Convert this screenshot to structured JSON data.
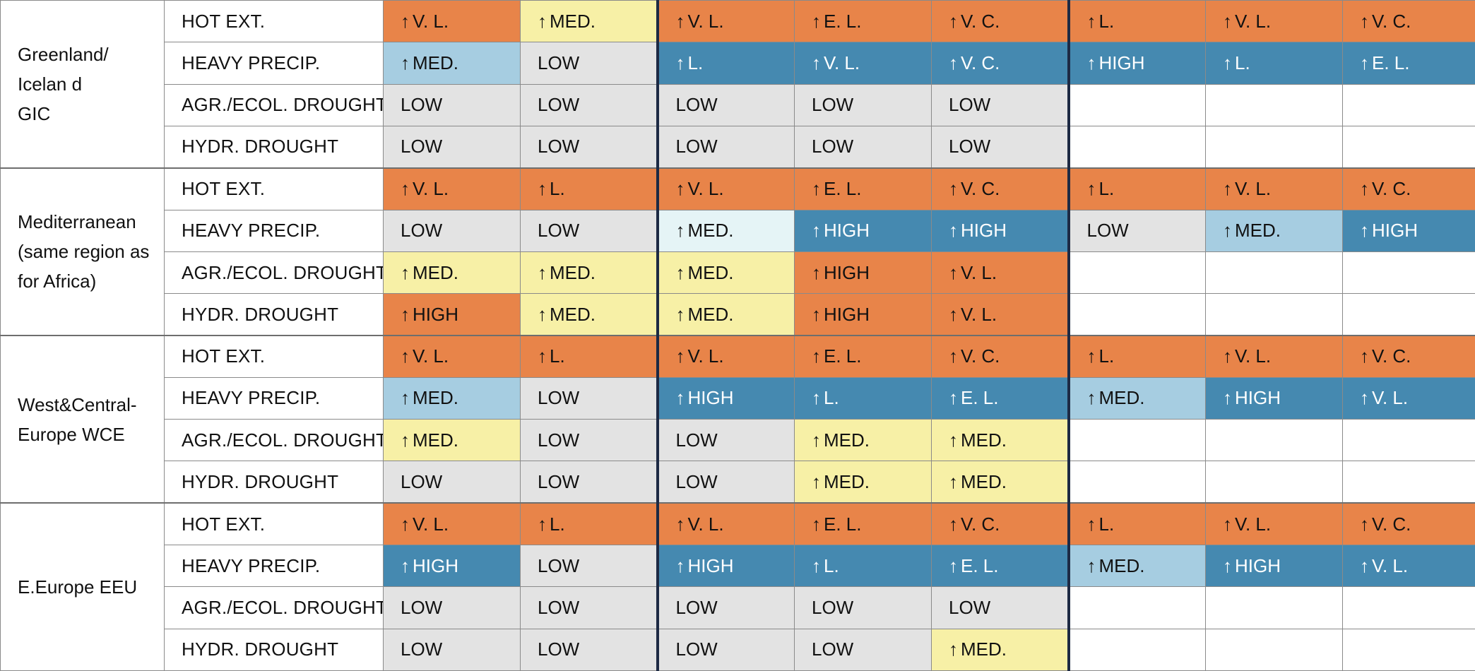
{
  "palette": {
    "hot": "#e88449",
    "yellow": "#f7f0a6",
    "lightblue": "#a6cde1",
    "blue": "#4589b0",
    "palecyan": "#e5f4f6",
    "gray": "#e3e3e3",
    "white": "#ffffff"
  },
  "regions": [
    {
      "label_lines": [
        "Greenland/",
        "Icelan d",
        "GIC"
      ],
      "rows": [
        {
          "hazard": "HOT EXT.",
          "cells": [
            {
              "arrow": "↑",
              "text": "V. L.",
              "color": "hot"
            },
            {
              "arrow": "↑",
              "text": "MED.",
              "color": "yellow"
            },
            {
              "arrow": "↑",
              "text": "V. L.",
              "color": "hot"
            },
            {
              "arrow": "↑",
              "text": "E. L.",
              "color": "hot"
            },
            {
              "arrow": "↑",
              "text": "V. C.",
              "color": "hot"
            },
            {
              "arrow": "↑",
              "text": "L.",
              "color": "hot"
            },
            {
              "arrow": "↑",
              "text": "V. L.",
              "color": "hot"
            },
            {
              "arrow": "↑",
              "text": "V. C.",
              "color": "hot"
            }
          ]
        },
        {
          "hazard": "HEAVY PRECIP.",
          "cells": [
            {
              "arrow": "↑",
              "text": "MED.",
              "color": "lightblue"
            },
            {
              "arrow": "",
              "text": "LOW",
              "color": "gray"
            },
            {
              "arrow": "↑",
              "text": "L.",
              "color": "blue"
            },
            {
              "arrow": "↑",
              "text": "V. L.",
              "color": "blue"
            },
            {
              "arrow": "↑",
              "text": "V. C.",
              "color": "blue"
            },
            {
              "arrow": "↑",
              "text": "HIGH",
              "color": "blue"
            },
            {
              "arrow": "↑",
              "text": "L.",
              "color": "blue"
            },
            {
              "arrow": "↑",
              "text": "E. L.",
              "color": "blue"
            }
          ]
        },
        {
          "hazard": "AGR./ECOL. DROUGHT",
          "cells": [
            {
              "arrow": "",
              "text": "LOW",
              "color": "gray"
            },
            {
              "arrow": "",
              "text": "LOW",
              "color": "gray"
            },
            {
              "arrow": "",
              "text": "LOW",
              "color": "gray"
            },
            {
              "arrow": "",
              "text": "LOW",
              "color": "gray"
            },
            {
              "arrow": "",
              "text": "LOW",
              "color": "gray"
            },
            {
              "arrow": "",
              "text": "",
              "color": "white"
            },
            {
              "arrow": "",
              "text": "",
              "color": "white"
            },
            {
              "arrow": "",
              "text": "",
              "color": "white"
            }
          ]
        },
        {
          "hazard": "HYDR. DROUGHT",
          "cells": [
            {
              "arrow": "",
              "text": "LOW",
              "color": "gray"
            },
            {
              "arrow": "",
              "text": "LOW",
              "color": "gray"
            },
            {
              "arrow": "",
              "text": "LOW",
              "color": "gray"
            },
            {
              "arrow": "",
              "text": "LOW",
              "color": "gray"
            },
            {
              "arrow": "",
              "text": "LOW",
              "color": "gray"
            },
            {
              "arrow": "",
              "text": "",
              "color": "white"
            },
            {
              "arrow": "",
              "text": "",
              "color": "white"
            },
            {
              "arrow": "",
              "text": "",
              "color": "white"
            }
          ]
        }
      ]
    },
    {
      "label_lines": [
        "Mediterranean",
        "(same region as",
        "for Africa)"
      ],
      "rows": [
        {
          "hazard": "HOT EXT.",
          "cells": [
            {
              "arrow": "↑",
              "text": "V. L.",
              "color": "hot"
            },
            {
              "arrow": "↑",
              "text": "L.",
              "color": "hot"
            },
            {
              "arrow": "↑",
              "text": "V. L.",
              "color": "hot"
            },
            {
              "arrow": "↑",
              "text": "E. L.",
              "color": "hot"
            },
            {
              "arrow": "↑",
              "text": "V. C.",
              "color": "hot"
            },
            {
              "arrow": "↑",
              "text": "L.",
              "color": "hot"
            },
            {
              "arrow": "↑",
              "text": "V. L.",
              "color": "hot"
            },
            {
              "arrow": "↑",
              "text": "V. C.",
              "color": "hot"
            }
          ]
        },
        {
          "hazard": "HEAVY PRECIP.",
          "cells": [
            {
              "arrow": "",
              "text": "LOW",
              "color": "gray"
            },
            {
              "arrow": "",
              "text": "LOW",
              "color": "gray"
            },
            {
              "arrow": "↑",
              "text": "MED.",
              "color": "palecyan"
            },
            {
              "arrow": "↑",
              "text": "HIGH",
              "color": "blue"
            },
            {
              "arrow": "↑",
              "text": "HIGH",
              "color": "blue"
            },
            {
              "arrow": "",
              "text": "LOW",
              "color": "gray"
            },
            {
              "arrow": "↑",
              "text": "MED.",
              "color": "lightblue"
            },
            {
              "arrow": "↑",
              "text": "HIGH",
              "color": "blue"
            }
          ]
        },
        {
          "hazard": "AGR./ECOL. DROUGHT",
          "cells": [
            {
              "arrow": "↑",
              "text": "MED.",
              "color": "yellow"
            },
            {
              "arrow": "↑",
              "text": "MED.",
              "color": "yellow"
            },
            {
              "arrow": "↑",
              "text": "MED.",
              "color": "yellow"
            },
            {
              "arrow": "↑",
              "text": "HIGH",
              "color": "hot"
            },
            {
              "arrow": "↑",
              "text": "V. L.",
              "color": "hot"
            },
            {
              "arrow": "",
              "text": "",
              "color": "white"
            },
            {
              "arrow": "",
              "text": "",
              "color": "white"
            },
            {
              "arrow": "",
              "text": "",
              "color": "white"
            }
          ]
        },
        {
          "hazard": "HYDR. DROUGHT",
          "cells": [
            {
              "arrow": "↑",
              "text": "HIGH",
              "color": "hot"
            },
            {
              "arrow": "↑",
              "text": "MED.",
              "color": "yellow"
            },
            {
              "arrow": "↑",
              "text": "MED.",
              "color": "yellow"
            },
            {
              "arrow": "↑",
              "text": "HIGH",
              "color": "hot"
            },
            {
              "arrow": "↑",
              "text": "V. L.",
              "color": "hot"
            },
            {
              "arrow": "",
              "text": "",
              "color": "white"
            },
            {
              "arrow": "",
              "text": "",
              "color": "white"
            },
            {
              "arrow": "",
              "text": "",
              "color": "white"
            }
          ]
        }
      ]
    },
    {
      "label_lines": [
        "West&Central-",
        "Europe WCE"
      ],
      "rows": [
        {
          "hazard": "HOT EXT.",
          "cells": [
            {
              "arrow": "↑",
              "text": "V. L.",
              "color": "hot"
            },
            {
              "arrow": "↑",
              "text": "L.",
              "color": "hot"
            },
            {
              "arrow": "↑",
              "text": "V. L.",
              "color": "hot"
            },
            {
              "arrow": "↑",
              "text": "E. L.",
              "color": "hot"
            },
            {
              "arrow": "↑",
              "text": "V. C.",
              "color": "hot"
            },
            {
              "arrow": "↑",
              "text": "L.",
              "color": "hot"
            },
            {
              "arrow": "↑",
              "text": "V. L.",
              "color": "hot"
            },
            {
              "arrow": "↑",
              "text": "V. C.",
              "color": "hot"
            }
          ]
        },
        {
          "hazard": "HEAVY PRECIP.",
          "cells": [
            {
              "arrow": "↑",
              "text": "MED.",
              "color": "lightblue"
            },
            {
              "arrow": "",
              "text": "LOW",
              "color": "gray"
            },
            {
              "arrow": "↑",
              "text": "HIGH",
              "color": "blue"
            },
            {
              "arrow": "↑",
              "text": "L.",
              "color": "blue"
            },
            {
              "arrow": "↑",
              "text": "E. L.",
              "color": "blue"
            },
            {
              "arrow": "↑",
              "text": "MED.",
              "color": "lightblue"
            },
            {
              "arrow": "↑",
              "text": "HIGH",
              "color": "blue"
            },
            {
              "arrow": "↑",
              "text": "V. L.",
              "color": "blue"
            }
          ]
        },
        {
          "hazard": "AGR./ECOL. DROUGHT",
          "cells": [
            {
              "arrow": "↑",
              "text": "MED.",
              "color": "yellow"
            },
            {
              "arrow": "",
              "text": "LOW",
              "color": "gray"
            },
            {
              "arrow": "",
              "text": "LOW",
              "color": "gray"
            },
            {
              "arrow": "↑",
              "text": "MED.",
              "color": "yellow"
            },
            {
              "arrow": "↑",
              "text": "MED.",
              "color": "yellow"
            },
            {
              "arrow": "",
              "text": "",
              "color": "white"
            },
            {
              "arrow": "",
              "text": "",
              "color": "white"
            },
            {
              "arrow": "",
              "text": "",
              "color": "white"
            }
          ]
        },
        {
          "hazard": "HYDR. DROUGHT",
          "cells": [
            {
              "arrow": "",
              "text": "LOW",
              "color": "gray"
            },
            {
              "arrow": "",
              "text": "LOW",
              "color": "gray"
            },
            {
              "arrow": "",
              "text": "LOW",
              "color": "gray"
            },
            {
              "arrow": "↑",
              "text": "MED.",
              "color": "yellow"
            },
            {
              "arrow": "↑",
              "text": "MED.",
              "color": "yellow"
            },
            {
              "arrow": "",
              "text": "",
              "color": "white"
            },
            {
              "arrow": "",
              "text": "",
              "color": "white"
            },
            {
              "arrow": "",
              "text": "",
              "color": "white"
            }
          ]
        }
      ]
    },
    {
      "label_lines": [
        "E.Europe EEU"
      ],
      "rows": [
        {
          "hazard": "HOT EXT.",
          "cells": [
            {
              "arrow": "↑",
              "text": "V. L.",
              "color": "hot"
            },
            {
              "arrow": "↑",
              "text": "L.",
              "color": "hot"
            },
            {
              "arrow": "↑",
              "text": "V. L.",
              "color": "hot"
            },
            {
              "arrow": "↑",
              "text": "E. L.",
              "color": "hot"
            },
            {
              "arrow": "↑",
              "text": "V. C.",
              "color": "hot"
            },
            {
              "arrow": "↑",
              "text": "L.",
              "color": "hot"
            },
            {
              "arrow": "↑",
              "text": "V. L.",
              "color": "hot"
            },
            {
              "arrow": "↑",
              "text": "V. C.",
              "color": "hot"
            }
          ]
        },
        {
          "hazard": "HEAVY PRECIP.",
          "cells": [
            {
              "arrow": "↑",
              "text": "HIGH",
              "color": "blue"
            },
            {
              "arrow": "",
              "text": "LOW",
              "color": "gray"
            },
            {
              "arrow": "↑",
              "text": "HIGH",
              "color": "blue"
            },
            {
              "arrow": "↑",
              "text": "L.",
              "color": "blue"
            },
            {
              "arrow": "↑",
              "text": "E. L.",
              "color": "blue"
            },
            {
              "arrow": "↑",
              "text": "MED.",
              "color": "lightblue"
            },
            {
              "arrow": "↑",
              "text": "HIGH",
              "color": "blue"
            },
            {
              "arrow": "↑",
              "text": "V. L.",
              "color": "blue"
            }
          ]
        },
        {
          "hazard": "AGR./ECOL. DROUGHT",
          "cells": [
            {
              "arrow": "",
              "text": "LOW",
              "color": "gray"
            },
            {
              "arrow": "",
              "text": "LOW",
              "color": "gray"
            },
            {
              "arrow": "",
              "text": "LOW",
              "color": "gray"
            },
            {
              "arrow": "",
              "text": "LOW",
              "color": "gray"
            },
            {
              "arrow": "",
              "text": "LOW",
              "color": "gray"
            },
            {
              "arrow": "",
              "text": "",
              "color": "white"
            },
            {
              "arrow": "",
              "text": "",
              "color": "white"
            },
            {
              "arrow": "",
              "text": "",
              "color": "white"
            }
          ]
        },
        {
          "hazard": "HYDR. DROUGHT",
          "cells": [
            {
              "arrow": "",
              "text": "LOW",
              "color": "gray"
            },
            {
              "arrow": "",
              "text": "LOW",
              "color": "gray"
            },
            {
              "arrow": "",
              "text": "LOW",
              "color": "gray"
            },
            {
              "arrow": "",
              "text": "LOW",
              "color": "gray"
            },
            {
              "arrow": "↑",
              "text": "MED.",
              "color": "yellow"
            },
            {
              "arrow": "",
              "text": "",
              "color": "white"
            },
            {
              "arrow": "",
              "text": "",
              "color": "white"
            },
            {
              "arrow": "",
              "text": "",
              "color": "white"
            }
          ]
        }
      ]
    }
  ]
}
